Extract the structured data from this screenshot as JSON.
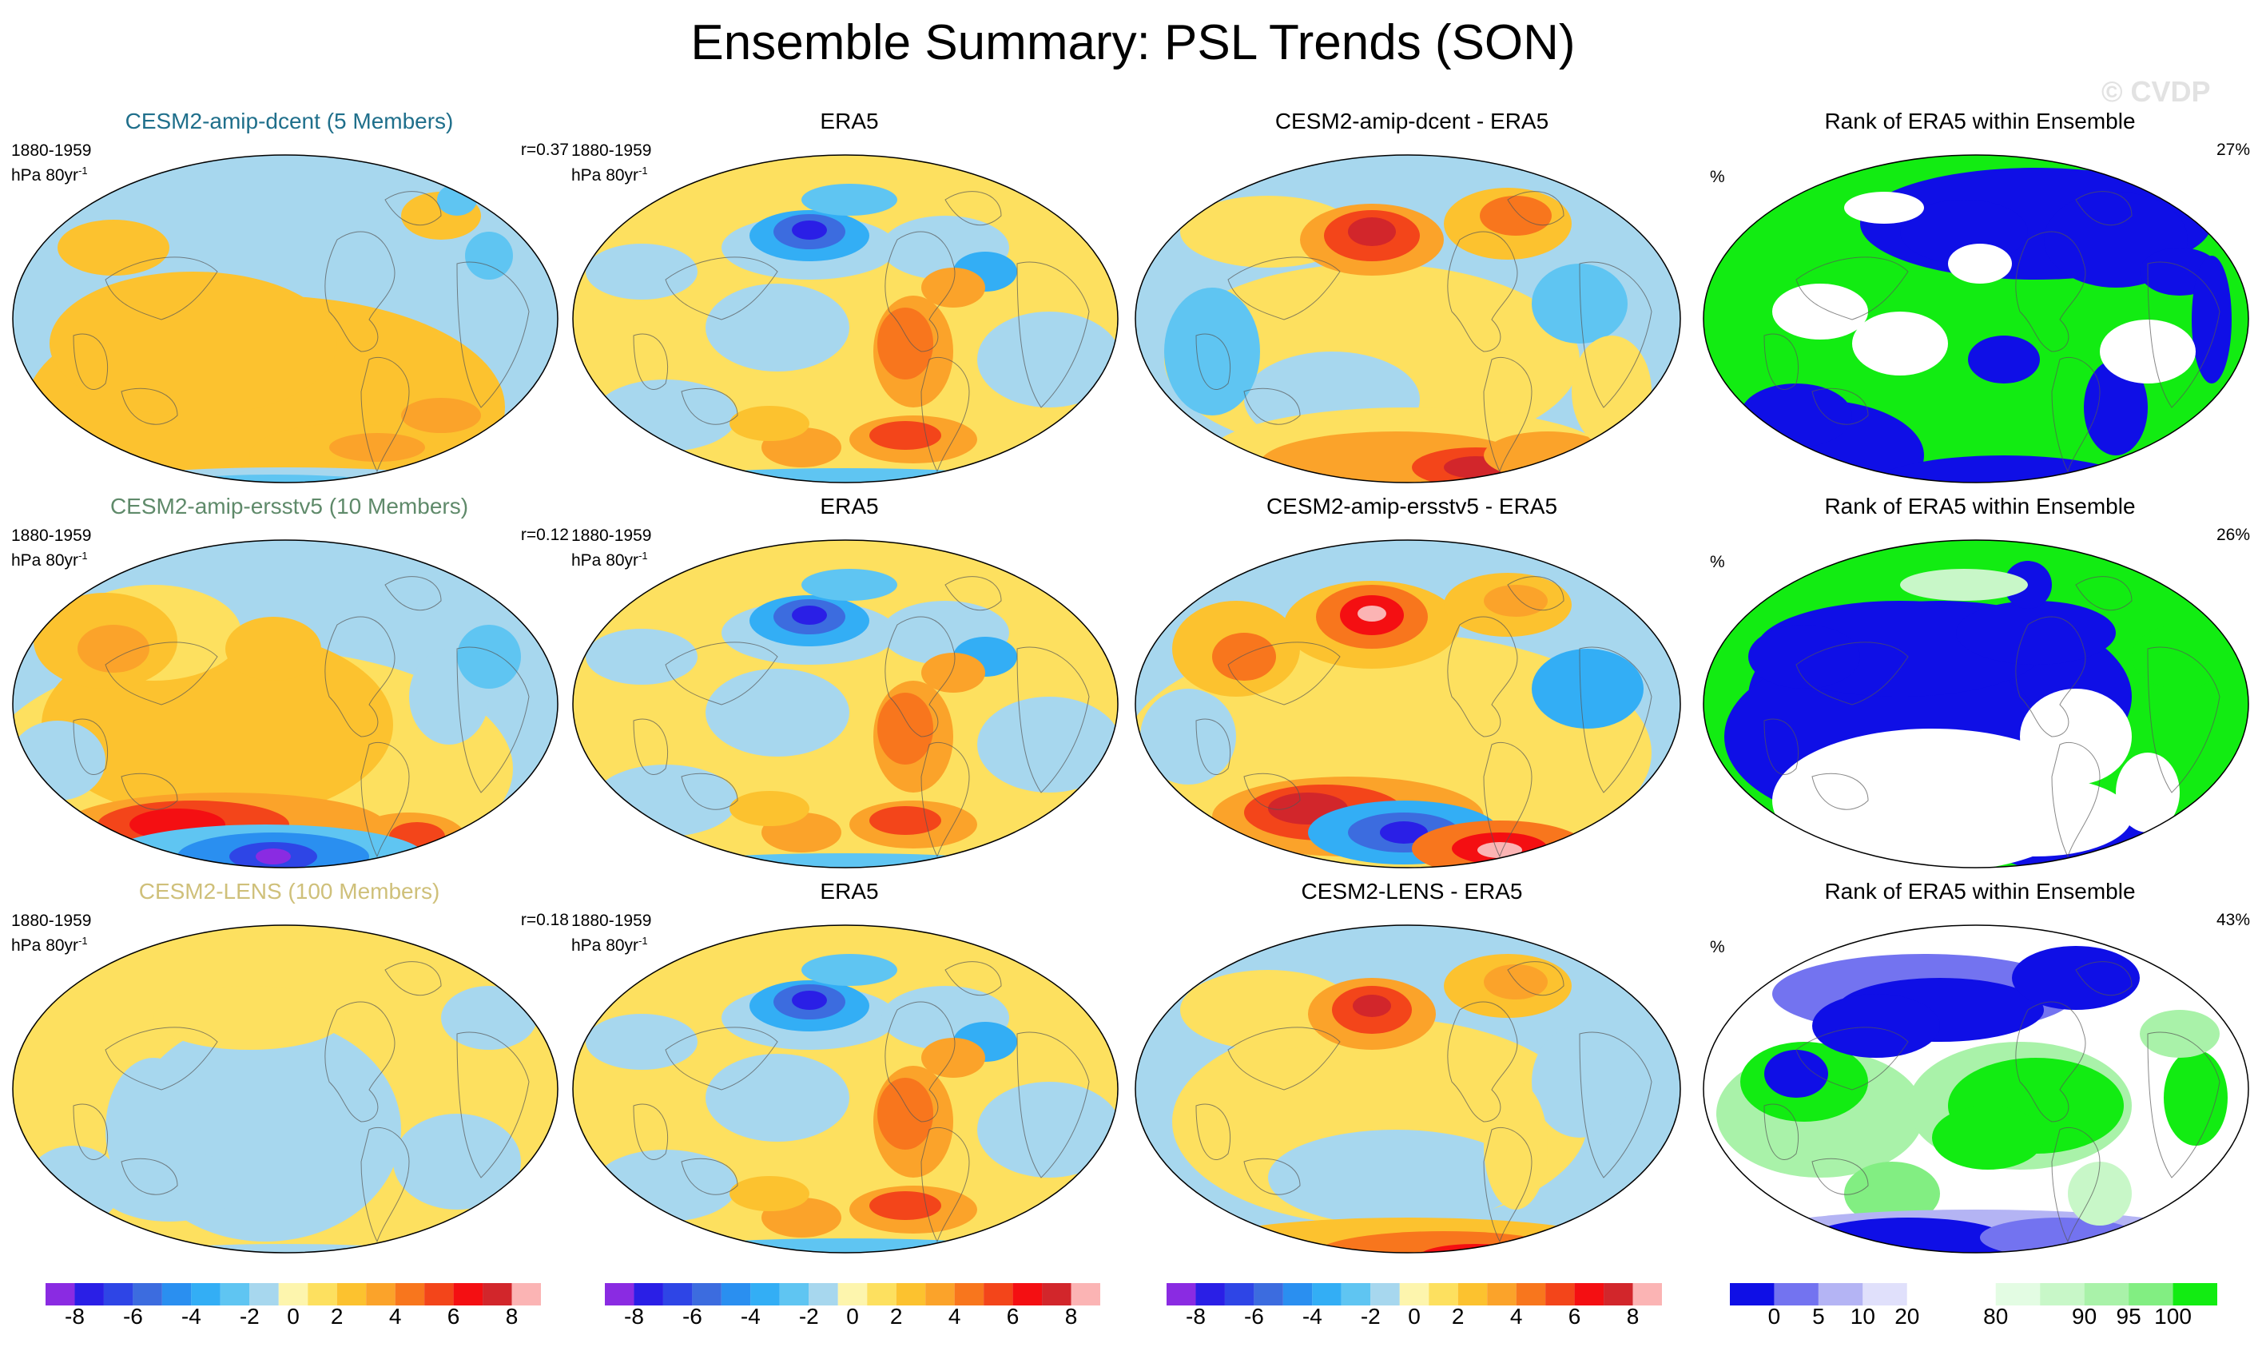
{
  "title": "Ensemble Summary: PSL Trends (SON)",
  "watermark": "© CVDP",
  "period": "1880-1959",
  "units_prefix": "hPa 80yr",
  "units_exp": "-1",
  "rank_units": "%",
  "rows": [
    {
      "model": {
        "title": "CESM2-amip-dcent (5 Members)",
        "title_color": "#1f6f8b",
        "corr": "r=0.37",
        "pattern": "model_dcent"
      },
      "obs": {
        "title": "ERA5",
        "pattern": "era5"
      },
      "diff": {
        "title": "CESM2-amip-dcent - ERA5",
        "pattern": "diff_dcent"
      },
      "rank": {
        "title": "Rank of ERA5 within Ensemble",
        "value": "27%",
        "pattern": "rank_dcent"
      }
    },
    {
      "model": {
        "title": "CESM2-amip-ersstv5 (10 Members)",
        "title_color": "#5f8a6a",
        "corr": "r=0.12",
        "pattern": "model_ersst"
      },
      "obs": {
        "title": "ERA5",
        "pattern": "era5"
      },
      "diff": {
        "title": "CESM2-amip-ersstv5 - ERA5",
        "pattern": "diff_ersst"
      },
      "rank": {
        "title": "Rank of ERA5 within Ensemble",
        "value": "26%",
        "pattern": "rank_ersst"
      }
    },
    {
      "model": {
        "title": "CESM2-LENS (100 Members)",
        "title_color": "#cfc07a",
        "corr": "r=0.18",
        "pattern": "model_lens"
      },
      "obs": {
        "title": "ERA5",
        "pattern": "era5"
      },
      "diff": {
        "title": "CESM2-LENS - ERA5",
        "pattern": "diff_lens"
      },
      "rank": {
        "title": "Rank of ERA5 within Ensemble",
        "value": "43%",
        "pattern": "rank_lens"
      }
    }
  ],
  "colorbars": {
    "trend": {
      "colors": [
        "#8a2be2",
        "#2a1fe6",
        "#2e45e6",
        "#3c6cdf",
        "#2a8ff0",
        "#33aef5",
        "#5fc5f2",
        "#a7d7ee",
        "#fdf5ad",
        "#fde05f",
        "#fcc22f",
        "#fba32a",
        "#f8761d",
        "#f3451a",
        "#f40f12",
        "#d2262b",
        "#fbb4b4"
      ],
      "labels": [
        "-8",
        "-6",
        "-4",
        "-2",
        "0",
        "2",
        "4",
        "6",
        "8"
      ]
    },
    "rank": {
      "colors": [
        "#0f0fe6",
        "#7373f0",
        "#b4b4f4",
        "#e0e0fb",
        "#ffffff",
        "#ffffff",
        "#e3fce3",
        "#c8f7c8",
        "#a9f2a9",
        "#82ee82",
        "#12ec12"
      ],
      "labels": [
        "0",
        "5",
        "10",
        "20",
        "80",
        "90",
        "95",
        "100"
      ]
    }
  }
}
